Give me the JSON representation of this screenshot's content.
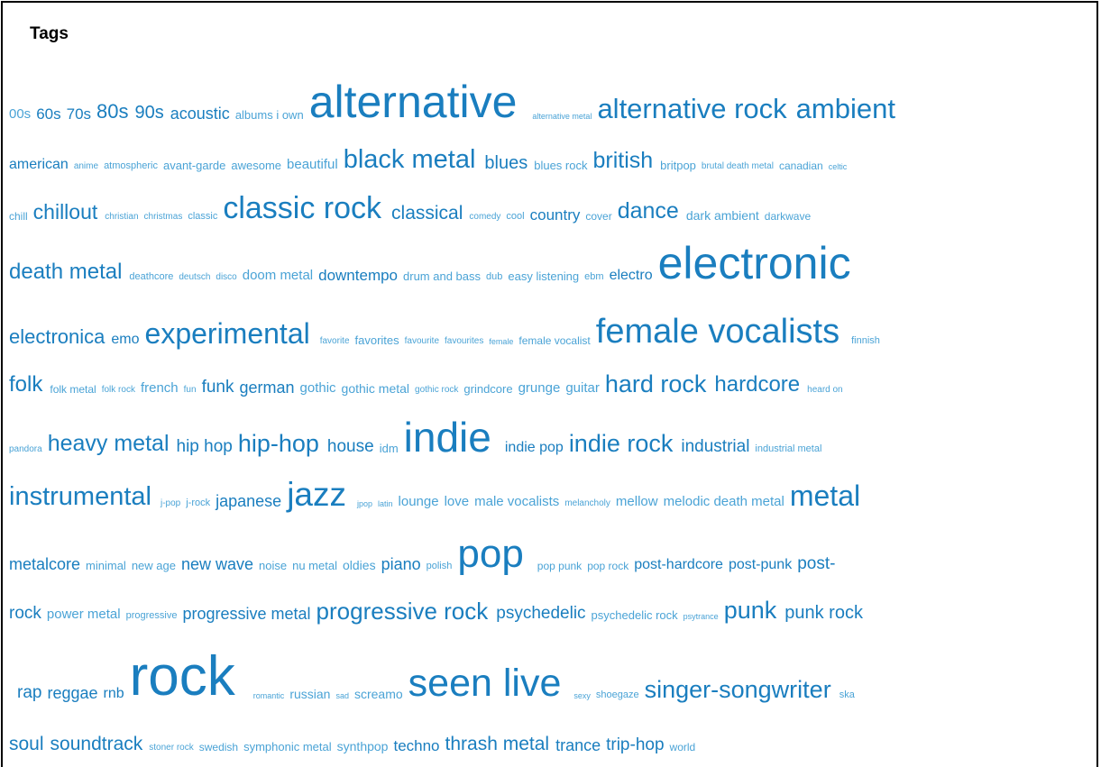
{
  "header": {
    "title": "Tags"
  },
  "colors": {
    "tag_dark": "#1a7ebf",
    "tag_light": "#4aa3d6"
  },
  "tags": [
    "00s",
    "60s",
    "70s",
    "80s",
    "90s",
    "acoustic",
    "albums i own",
    "alternative",
    "alternative metal",
    "alternative rock",
    "ambient",
    "american",
    "anime",
    "atmospheric",
    "avant-garde",
    "awesome",
    "beautiful",
    "black metal",
    "blues",
    "blues rock",
    "british",
    "britpop",
    "brutal death metal",
    "canadian",
    "celtic",
    "chill",
    "chillout",
    "christian",
    "christmas",
    "classic",
    "classic rock",
    "classical",
    "comedy",
    "cool",
    "country",
    "cover",
    "dance",
    "dark ambient",
    "darkwave",
    "death metal",
    "deathcore",
    "deutsch",
    "disco",
    "doom metal",
    "downtempo",
    "drum and bass",
    "dub",
    "easy listening",
    "ebm",
    "electro",
    "electronic",
    "electronica",
    "emo",
    "experimental",
    "favorite",
    "favorites",
    "favourite",
    "favourites",
    "female",
    "female vocalist",
    "female vocalists",
    "finnish",
    "folk",
    "folk metal",
    "folk rock",
    "french",
    "fun",
    "funk",
    "german",
    "gothic",
    "gothic metal",
    "gothic rock",
    "grindcore",
    "grunge",
    "guitar",
    "hard rock",
    "hardcore",
    "heard on",
    "pandora",
    "heavy metal",
    "hip hop",
    "hip-hop",
    "house",
    "idm",
    "indie",
    "indie pop",
    "indie rock",
    "industrial",
    "industrial metal",
    "instrumental",
    "j-pop",
    "j-rock",
    "japanese",
    "jazz",
    "jpop",
    "latin",
    "lounge",
    "love",
    "male vocalists",
    "melancholy",
    "mellow",
    "melodic death metal",
    "metal",
    "metalcore",
    "minimal",
    "new age",
    "new wave",
    "noise",
    "nu metal",
    "oldies",
    "piano",
    "polish",
    "pop",
    "pop punk",
    "pop rock",
    "post-hardcore",
    "post-punk",
    "post-",
    "rock",
    "power metal",
    "progressive",
    "progressive metal",
    "progressive rock",
    "psychedelic",
    "psychedelic rock",
    "psytrance",
    "punk",
    "punk rock",
    "rap",
    "reggae",
    "rnb",
    "rock",
    "romantic",
    "russian",
    "sad",
    "screamo",
    "seen live",
    "sexy",
    "shoegaze",
    "singer-songwriter",
    "ska",
    "soul",
    "soundtrack",
    "stoner rock",
    "swedish",
    "symphonic metal",
    "synthpop",
    "techno",
    "thrash metal",
    "trance",
    "trip-hop",
    "world"
  ]
}
